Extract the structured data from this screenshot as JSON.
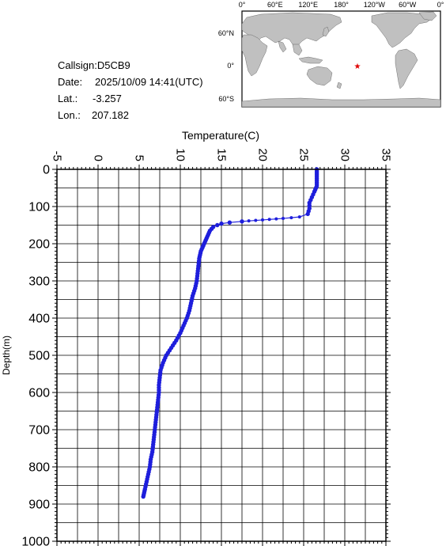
{
  "info": {
    "callsign": "Callsign:D5CB9",
    "date_label": "Date:",
    "date_value": "2025/10/09 14:41(UTC)",
    "lat_label": "Lat.:",
    "lat_value": "-3.257",
    "lon_label": "Lon.:",
    "lon_value": "207.182"
  },
  "map": {
    "top_labels": [
      "0°",
      "60°E",
      "120°E",
      "180°",
      "120°W",
      "60°W",
      "0°"
    ],
    "left_labels": [
      "60°N",
      "0°",
      "60°S"
    ],
    "marker_color": "#e00000",
    "marker": "★",
    "land_color": "#c0c0c0",
    "ocean_color": "#ffffff"
  },
  "chart_data": {
    "type": "line",
    "xlabel": "Temperature(C)",
    "ylabel": "Depth(m)",
    "xlim": [
      -5,
      35
    ],
    "ylim": [
      1000,
      0
    ],
    "x_ticks": [
      "-5",
      "0",
      "5",
      "10",
      "15",
      "20",
      "25",
      "30",
      "35"
    ],
    "y_ticks": [
      "0",
      "100",
      "200",
      "300",
      "400",
      "500",
      "600",
      "700",
      "800",
      "900",
      "1000"
    ],
    "grid": true,
    "line_color": "#1e1edc",
    "series": [
      {
        "temperature": [
          26.6,
          26.6,
          26.6,
          26.6,
          26.6,
          26.6,
          26.5,
          26.3,
          26.0,
          25.7,
          25.7,
          25.5,
          24.5,
          22.5,
          20.0,
          17.5,
          16.0,
          15.0,
          14.5,
          14.0,
          13.8,
          13.6,
          13.5,
          13.3,
          13.1,
          12.9,
          12.7,
          12.5,
          12.4,
          12.3,
          12.2,
          12.1,
          12.0,
          11.8,
          11.5,
          11.3,
          11.1,
          10.8,
          10.4,
          10.0,
          9.5,
          8.9,
          8.3,
          7.9,
          7.6,
          7.5,
          7.4,
          7.4,
          7.3,
          7.2,
          7.1,
          7.0,
          6.9,
          6.8,
          6.7,
          6.6,
          6.4,
          6.3,
          6.1,
          5.9,
          5.7,
          5.6,
          5.5
        ],
        "depth": [
          0,
          10,
          20,
          30,
          40,
          45,
          50,
          60,
          75,
          90,
          105,
          120,
          128,
          132,
          136,
          140,
          143,
          146,
          150,
          155,
          160,
          165,
          170,
          180,
          190,
          200,
          210,
          220,
          230,
          240,
          260,
          280,
          300,
          320,
          340,
          360,
          380,
          400,
          420,
          440,
          460,
          480,
          500,
          520,
          540,
          560,
          580,
          600,
          620,
          640,
          660,
          680,
          700,
          720,
          740,
          760,
          780,
          800,
          820,
          840,
          860,
          870,
          880
        ]
      }
    ]
  }
}
